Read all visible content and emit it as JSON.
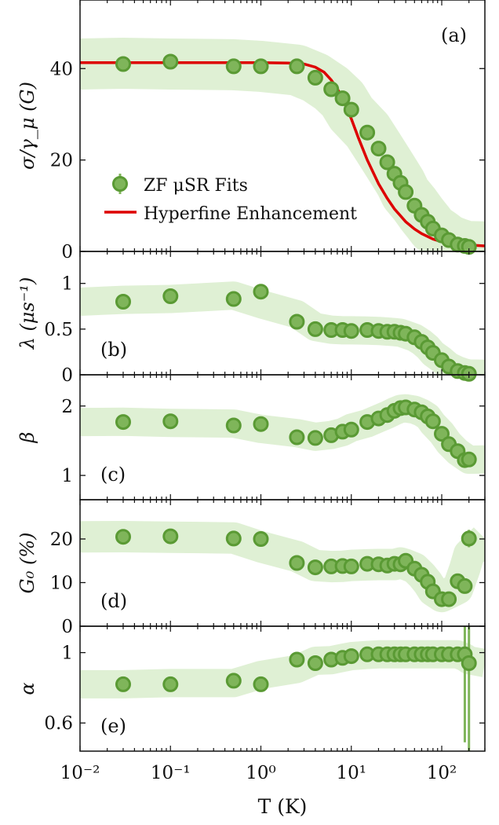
{
  "colors": {
    "marker_fill": "#7fb55a",
    "marker_edge": "#5a9a34",
    "band": "#dff0d4",
    "fit_line": "#dd0000",
    "axis": "#111111"
  },
  "chart_data": [
    {
      "type": "scatter",
      "panel_label": "(a)",
      "ylabel": "σ/γ_μ (G)",
      "xscale": "log",
      "xlim": [
        0.01,
        300
      ],
      "ylim": [
        0,
        55
      ],
      "yticks": [
        0,
        20,
        40
      ],
      "ytick_labels": [
        "0",
        "20",
        "40"
      ],
      "legend": {
        "position": "lower-left",
        "entries": [
          "ZF μSR Fits",
          "Hyperfine Enhancement"
        ]
      },
      "series": [
        {
          "name": "ZF μSR Fits",
          "x": [
            0.03,
            0.1,
            0.5,
            1.0,
            2.5,
            4,
            6,
            8,
            10,
            15,
            20,
            25,
            30,
            35,
            40,
            50,
            60,
            70,
            80,
            100,
            120,
            150,
            180,
            200
          ],
          "y": [
            41,
            41.5,
            40.5,
            40.5,
            40.5,
            38,
            35.5,
            33.5,
            31,
            26,
            22.5,
            19.5,
            17,
            15,
            13,
            10,
            8,
            6.5,
            5,
            3.5,
            2.5,
            1.5,
            1.2,
            1
          ]
        },
        {
          "name": "Hyperfine Enhancement",
          "kind": "line",
          "x": [
            0.01,
            1,
            2,
            3,
            4,
            5,
            6,
            7,
            8,
            10,
            12,
            15,
            20,
            25,
            30,
            40,
            50,
            60,
            80,
            100,
            150,
            200,
            300
          ],
          "y": [
            41.3,
            41.3,
            41.2,
            41,
            40.3,
            39.2,
            37.5,
            35.6,
            33.5,
            29,
            24.8,
            20,
            14.8,
            11.6,
            9.3,
            6.5,
            4.9,
            3.9,
            2.7,
            2.1,
            1.6,
            1.4,
            1.2
          ]
        }
      ]
    },
    {
      "type": "scatter",
      "panel_label": "(b)",
      "ylabel": "λ (μs⁻¹)",
      "xscale": "log",
      "xlim": [
        0.01,
        300
      ],
      "ylim": [
        0,
        1.35
      ],
      "yticks": [
        0,
        0.5,
        1
      ],
      "ytick_labels": [
        "0",
        "0.5",
        "1"
      ],
      "series": [
        {
          "name": "λ",
          "x": [
            0.03,
            0.1,
            0.5,
            1.0,
            2.5,
            4,
            6,
            8,
            10,
            15,
            20,
            25,
            30,
            35,
            40,
            50,
            60,
            70,
            80,
            100,
            120,
            150,
            180,
            200
          ],
          "y": [
            0.8,
            0.86,
            0.83,
            0.91,
            0.58,
            0.5,
            0.49,
            0.49,
            0.48,
            0.49,
            0.48,
            0.47,
            0.47,
            0.46,
            0.45,
            0.41,
            0.36,
            0.3,
            0.24,
            0.16,
            0.09,
            0.04,
            0.02,
            0.01
          ]
        }
      ]
    },
    {
      "type": "scatter",
      "panel_label": "(c)",
      "ylabel": "β",
      "xscale": "log",
      "xlim": [
        0.01,
        300
      ],
      "ylim": [
        0.65,
        2.45
      ],
      "yticks": [
        1,
        2
      ],
      "ytick_labels": [
        "1",
        "2"
      ],
      "series": [
        {
          "name": "β",
          "x": [
            0.03,
            0.1,
            0.5,
            1.0,
            2.5,
            4,
            6,
            8,
            10,
            15,
            20,
            25,
            30,
            35,
            40,
            50,
            60,
            70,
            80,
            100,
            120,
            150,
            180,
            200
          ],
          "y": [
            1.77,
            1.78,
            1.72,
            1.74,
            1.55,
            1.54,
            1.58,
            1.63,
            1.66,
            1.77,
            1.82,
            1.87,
            1.93,
            1.97,
            1.98,
            1.95,
            1.91,
            1.85,
            1.78,
            1.6,
            1.45,
            1.35,
            1.22,
            1.23
          ]
        }
      ]
    },
    {
      "type": "scatter",
      "panel_label": "(d)",
      "ylabel": "G₀ (%)",
      "xscale": "log",
      "xlim": [
        0.01,
        300
      ],
      "ylim": [
        0,
        29
      ],
      "yticks": [
        0,
        10,
        20
      ],
      "ytick_labels": [
        "0",
        "10",
        "20"
      ],
      "series": [
        {
          "name": "G0",
          "x": [
            0.03,
            0.1,
            0.5,
            1.0,
            2.5,
            4,
            6,
            8,
            10,
            15,
            20,
            25,
            30,
            35,
            40,
            50,
            60,
            70,
            80,
            100,
            120,
            150,
            180,
            200
          ],
          "y": [
            20.5,
            20.6,
            20.1,
            20,
            14.5,
            13.5,
            13.7,
            13.8,
            13.7,
            14.3,
            14.2,
            13.9,
            14.3,
            14.2,
            15,
            13.2,
            11.8,
            10.2,
            8,
            6.2,
            6.2,
            10.3,
            9.2,
            20.1
          ],
          "yerr": [
            0.6,
            0.6,
            0.6,
            0.6,
            0.6,
            0.6,
            0.6,
            0.6,
            0.6,
            0.6,
            0.6,
            0.6,
            0.6,
            0.6,
            0.6,
            0.6,
            0.6,
            0.6,
            0.6,
            0.6,
            0.6,
            0.8,
            1.2,
            2
          ]
        }
      ]
    },
    {
      "type": "scatter",
      "panel_label": "(e)",
      "ylabel": "α",
      "xscale": "log",
      "xlim": [
        0.01,
        300
      ],
      "ylim": [
        0.44,
        1.15
      ],
      "yticks": [
        0.6,
        1
      ],
      "ytick_labels": [
        "0.6",
        "1"
      ],
      "xlabel": "T (K)",
      "xticks": [
        0.01,
        0.1,
        1,
        10,
        100
      ],
      "xtick_labels": [
        "10⁻²",
        "10⁻¹",
        "10⁰",
        "10¹",
        "10²"
      ],
      "series": [
        {
          "name": "α",
          "x": [
            0.03,
            0.1,
            0.5,
            1.0,
            2.5,
            4,
            6,
            8,
            10,
            15,
            20,
            25,
            30,
            35,
            40,
            50,
            60,
            70,
            80,
            100,
            120,
            150,
            180,
            200
          ],
          "y": [
            0.82,
            0.82,
            0.84,
            0.82,
            0.96,
            0.94,
            0.96,
            0.97,
            0.98,
            0.99,
            0.99,
            0.99,
            0.99,
            0.99,
            0.99,
            0.99,
            0.99,
            0.99,
            0.99,
            0.99,
            0.99,
            0.99,
            0.99,
            0.94
          ],
          "yerr": [
            0,
            0,
            0,
            0,
            0,
            0,
            0,
            0,
            0,
            0,
            0,
            0,
            0,
            0,
            0,
            0,
            0,
            0,
            0,
            0,
            0,
            0,
            0.5,
            0.7
          ]
        }
      ]
    }
  ]
}
